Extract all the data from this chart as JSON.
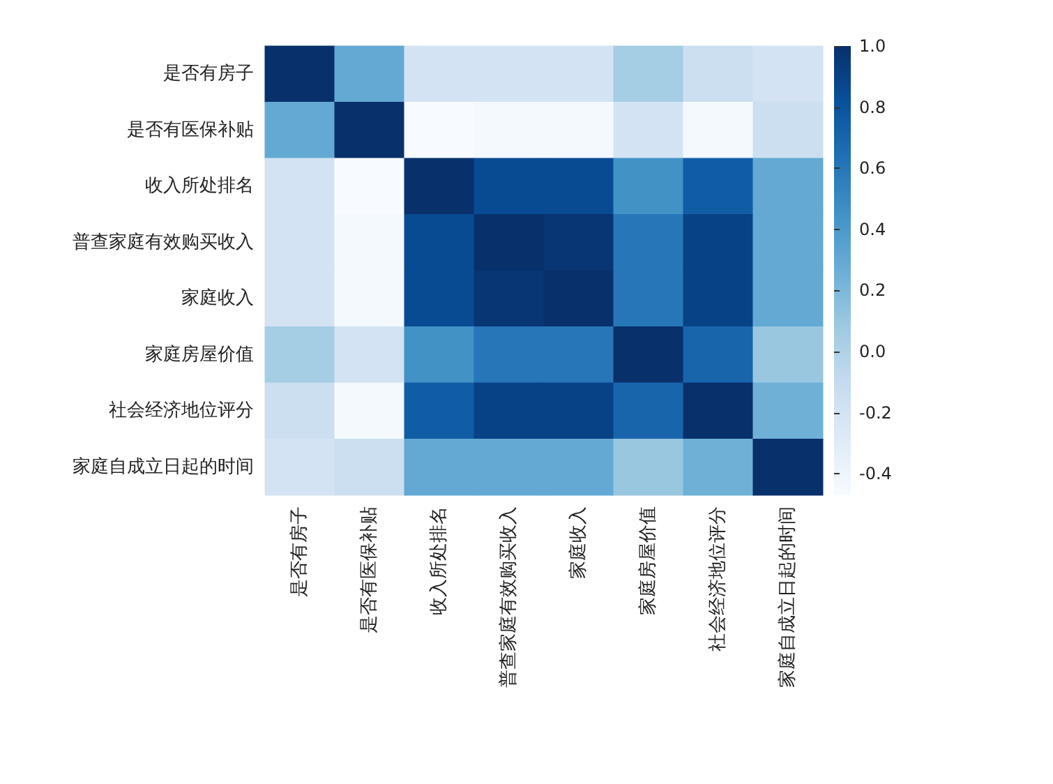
{
  "chart_data": {
    "type": "heatmap",
    "categories": [
      "是否有房子",
      "是否有医保补贴",
      "收入所处排名",
      "普查家庭有效购买收入",
      "家庭收入",
      "家庭房屋价值",
      "社会经济地位评分",
      "家庭自成立日起的时间"
    ],
    "y_categories": [
      "是否有房子",
      "是否有医保补贴",
      "收入所处排名",
      "普查家庭有效购买收入",
      "家庭收入",
      "家庭房屋价值",
      "社会经济地位评分",
      "家庭自成立日起的时间"
    ],
    "cells": [
      [
        1,
        0.3,
        -0.2,
        -0.2,
        -0.2,
        0.05,
        -0.15,
        -0.2
      ],
      [
        0.3,
        1,
        -0.47,
        -0.45,
        -0.45,
        -0.2,
        -0.45,
        -0.15
      ],
      [
        -0.2,
        -0.47,
        1,
        0.85,
        0.85,
        0.45,
        0.75,
        0.3
      ],
      [
        -0.2,
        -0.45,
        0.85,
        1,
        0.97,
        0.6,
        0.9,
        0.3
      ],
      [
        -0.2,
        -0.45,
        0.85,
        0.97,
        1,
        0.6,
        0.9,
        0.3
      ],
      [
        0.05,
        -0.2,
        0.45,
        0.6,
        0.6,
        1,
        0.7,
        0.1
      ],
      [
        -0.15,
        -0.45,
        0.75,
        0.9,
        0.9,
        0.7,
        1,
        0.25
      ],
      [
        -0.2,
        -0.15,
        0.3,
        0.3,
        0.3,
        0.1,
        0.25,
        1
      ]
    ],
    "clim": [
      -0.47,
      1
    ],
    "cticks": [
      {
        "value": -0.4,
        "label": "-0.4"
      },
      {
        "value": -0.2,
        "label": "-0.2"
      },
      {
        "value": 0,
        "label": "0.0"
      },
      {
        "value": 0.2,
        "label": "0.2"
      },
      {
        "value": 0.4,
        "label": "0.4"
      },
      {
        "value": 0.6,
        "label": "0.6"
      },
      {
        "value": 0.8,
        "label": "0.8"
      },
      {
        "value": 1,
        "label": "1.0"
      }
    ]
  }
}
